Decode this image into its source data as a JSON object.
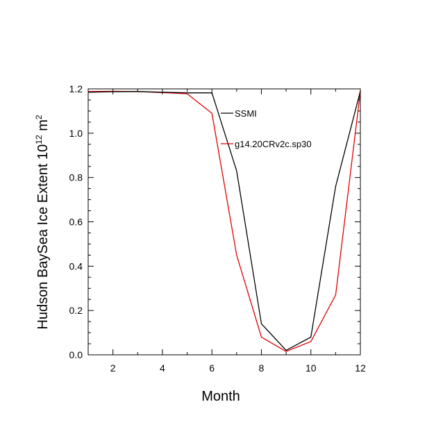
{
  "chart_data": {
    "type": "line",
    "title": "",
    "xlabel": "Month",
    "ylabel_main": "Hudson BaySea Ice Extent 10",
    "ylabel_exp": "12",
    "ylabel_unit": " m",
    "ylabel_unit_exp": "2",
    "xlim": [
      1,
      12
    ],
    "ylim": [
      0,
      1.2
    ],
    "xticks": [
      2,
      4,
      6,
      8,
      10,
      12
    ],
    "yticks": [
      0,
      0.2,
      0.4,
      0.6,
      0.8,
      1.0,
      1.2
    ],
    "ytick_labels": [
      "0.0",
      "0.2",
      "0.4",
      "0.6",
      "0.8",
      "1.0",
      "1.2"
    ],
    "x": [
      1,
      2,
      3,
      4,
      5,
      6,
      7,
      8,
      9,
      10,
      11,
      12
    ],
    "series": [
      {
        "name": "SSMI",
        "color": "#000000",
        "values": [
          1.185,
          1.187,
          1.188,
          1.185,
          1.182,
          1.182,
          0.83,
          0.14,
          0.02,
          0.08,
          0.76,
          1.19
        ]
      },
      {
        "name": "g14.20CRv2c.sp30",
        "color": "#e00000",
        "values": [
          1.188,
          1.189,
          1.188,
          1.183,
          1.178,
          1.09,
          0.45,
          0.08,
          0.015,
          0.06,
          0.27,
          1.19
        ]
      }
    ],
    "legend_position": "top-right"
  }
}
